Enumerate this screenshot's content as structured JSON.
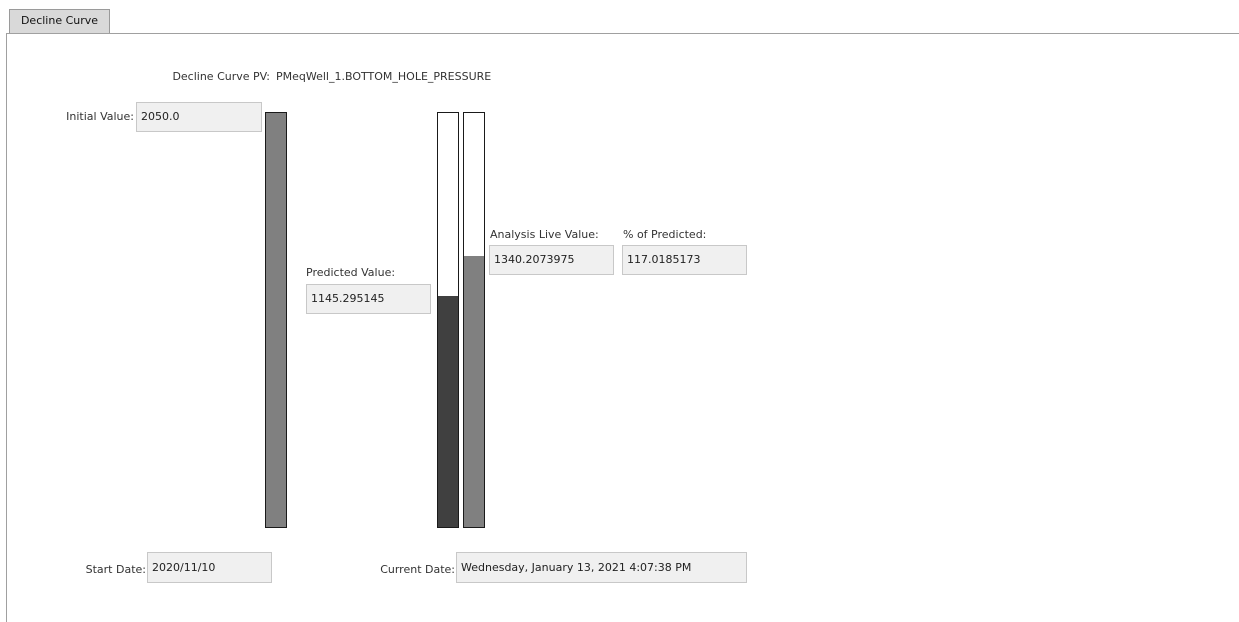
{
  "tabs": [
    {
      "label": "Decline Curve"
    }
  ],
  "pv": {
    "label": "Decline Curve PV:",
    "value": "PMeqWell_1.BOTTOM_HOLE_PRESSURE"
  },
  "initial": {
    "label": "Initial Value:",
    "value": "2050.0"
  },
  "predicted": {
    "label": "Predicted Value:",
    "value": "1145.295145"
  },
  "live": {
    "label": "Analysis Live Value:",
    "value": "1340.2073975"
  },
  "percent": {
    "label": "% of Predicted:",
    "value": "117.0185173"
  },
  "start_date": {
    "label": "Start Date:",
    "value": "2020/11/10"
  },
  "current_date": {
    "label": "Current Date:",
    "value": "Wednesday, January 13, 2021 4:07:38 PM"
  },
  "bars": {
    "initial": {
      "fill_fraction": 1.0,
      "color": "#808080"
    },
    "predicted": {
      "fill_fraction": 0.558,
      "color": "#404040"
    },
    "live": {
      "fill_fraction": 0.654,
      "color": "#808080"
    }
  }
}
